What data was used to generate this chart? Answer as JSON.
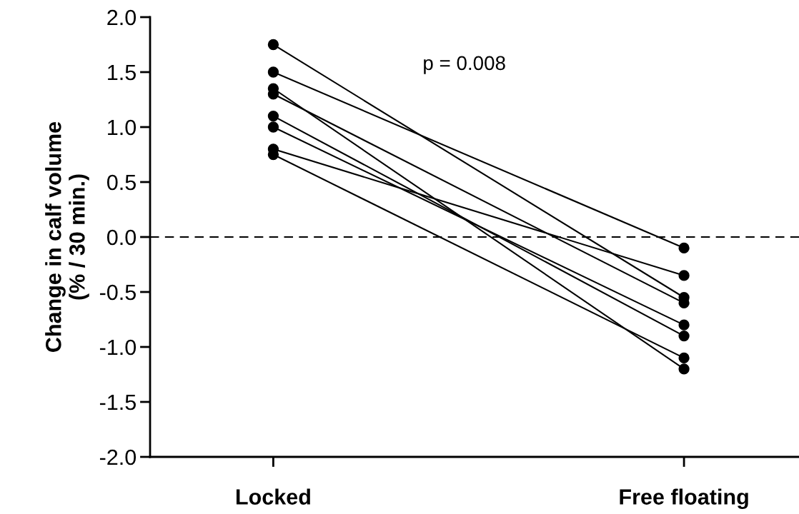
{
  "chart_data": {
    "type": "line",
    "categories": [
      "Locked",
      "Free floating"
    ],
    "ylabel": "Change in calf volume\n(% / 30 min.)",
    "ylim": [
      -2.0,
      2.0
    ],
    "yticks": [
      {
        "value": -2,
        "label": "-2.0"
      },
      {
        "value": -1.5,
        "label": "-1.5"
      },
      {
        "value": -1,
        "label": "-1.0"
      },
      {
        "value": -0.5,
        "label": "-0.5"
      },
      {
        "value": 0,
        "label": "0.0"
      },
      {
        "value": 0.5,
        "label": "0.5"
      },
      {
        "value": 1,
        "label": "1.0"
      },
      {
        "value": 1.5,
        "label": "1.5"
      },
      {
        "value": 2,
        "label": "2.0"
      }
    ],
    "marker": "circle",
    "line_style": "solid",
    "grid": false,
    "legend": false,
    "series": [
      {
        "color": "#000000",
        "values": [
          1.75,
          -0.55
        ]
      },
      {
        "color": "#000000",
        "values": [
          1.5,
          -0.1
        ]
      },
      {
        "color": "#000000",
        "values": [
          1.35,
          -1.2
        ]
      },
      {
        "color": "#000000",
        "values": [
          1.3,
          -0.6
        ]
      },
      {
        "color": "#000000",
        "values": [
          1.1,
          -0.9
        ]
      },
      {
        "color": "#000000",
        "values": [
          1.0,
          -0.8
        ]
      },
      {
        "color": "#000000",
        "values": [
          0.8,
          -0.35
        ]
      },
      {
        "color": "#000000",
        "values": [
          0.75,
          -1.1
        ]
      }
    ],
    "ref_lines": [
      {
        "axis": "y",
        "value": 0,
        "color": "#000000",
        "line_style": "dashed"
      }
    ],
    "annotations": [
      "p = 0.008"
    ]
  }
}
